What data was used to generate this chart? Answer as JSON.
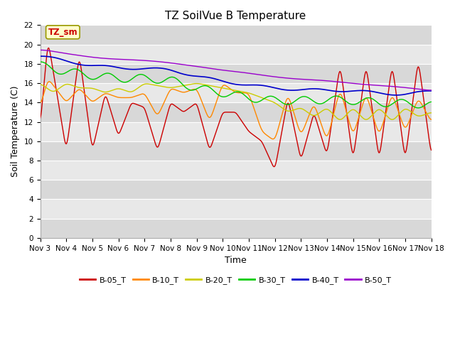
{
  "title": "TZ SoilVue B Temperature",
  "xlabel": "Time",
  "ylabel": "Soil Temperature (C)",
  "ylim": [
    0,
    22
  ],
  "yticks": [
    0,
    2,
    4,
    6,
    8,
    10,
    12,
    14,
    16,
    18,
    20,
    22
  ],
  "x_labels": [
    "Nov 3",
    "Nov 4",
    "Nov 5",
    "Nov 6",
    "Nov 7",
    "Nov 8",
    "Nov 9",
    "Nov 10",
    "Nov 11",
    "Nov 12",
    "Nov 13",
    "Nov 14",
    "Nov 15",
    "Nov 16",
    "Nov 17",
    "Nov 18"
  ],
  "annotation_label": "TZ_sm",
  "annotation_color": "#cc0000",
  "annotation_bg": "#ffffcc",
  "series_colors": {
    "B-05_T": "#cc0000",
    "B-10_T": "#ff8800",
    "B-20_T": "#cccc00",
    "B-30_T": "#00cc00",
    "B-40_T": "#0000cc",
    "B-50_T": "#9900cc"
  },
  "band_colors": [
    "#d8d8d8",
    "#e8e8e8"
  ],
  "n_points": 600
}
